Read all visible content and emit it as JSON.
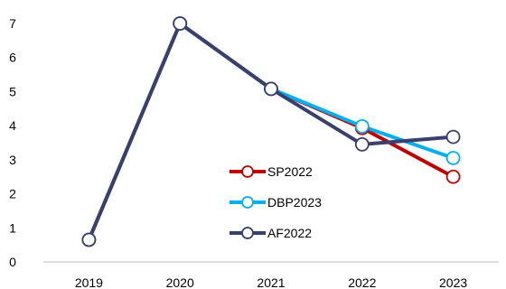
{
  "chart_data": {
    "type": "line",
    "x": [
      "2019",
      "2020",
      "2021",
      "2022",
      "2023"
    ],
    "ylim": [
      0,
      7
    ],
    "yticks": [
      "0",
      "1",
      "2",
      "3",
      "4",
      "5",
      "6",
      "7"
    ],
    "grid": false,
    "legend_position": "center-right",
    "series": [
      {
        "name": "SP2022",
        "color": "#c00000",
        "values": [
          0.65,
          7.0,
          5.08,
          3.93,
          2.5
        ]
      },
      {
        "name": "DBP2023",
        "color": "#00b0f0",
        "values": [
          0.65,
          7.0,
          5.08,
          3.98,
          3.05
        ]
      },
      {
        "name": "AF2022",
        "color": "#3a3f6e",
        "values": [
          0.65,
          7.0,
          5.08,
          3.45,
          3.67
        ]
      }
    ]
  }
}
